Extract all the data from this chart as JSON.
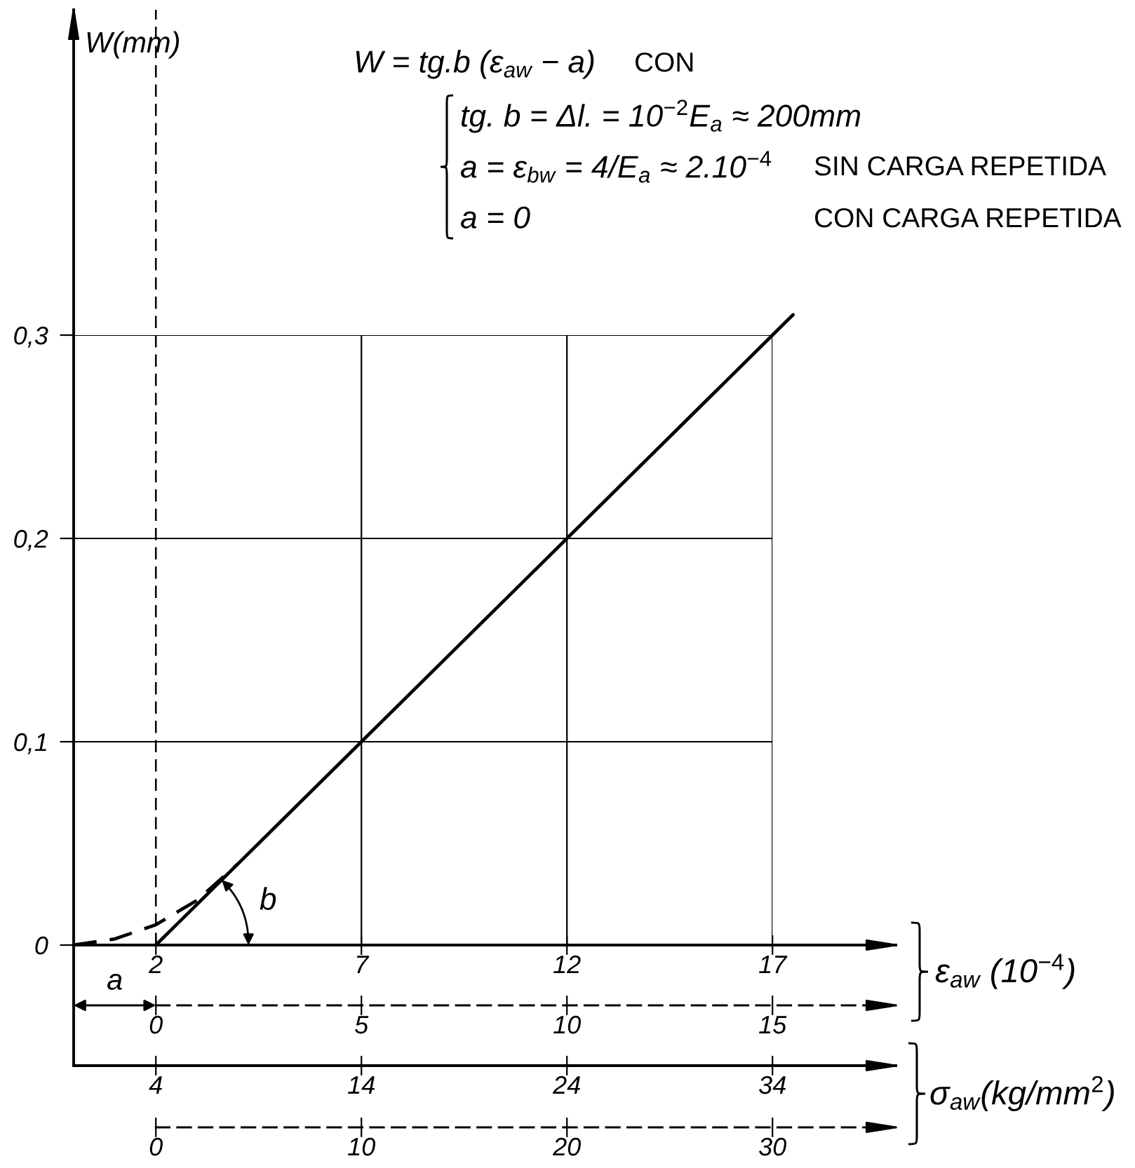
{
  "chart_data": {
    "type": "line",
    "xlabel": "ε$_{aw}$ (10$^{−4}$)",
    "ylabel": "W(mm)",
    "x2label": "σ$_{aw}$(kg/mm$^{2}$)",
    "xlim": [
      0,
      20
    ],
    "xticks": [
      2,
      7,
      12,
      17
    ],
    "x2lim": [
      0,
      40
    ],
    "x2ticks": [
      4,
      14,
      24,
      34
    ],
    "ylim": [
      0,
      0.46
    ],
    "yticks": [
      0,
      {
        "value": 0.1,
        "label": "0,1"
      },
      {
        "value": 0.2,
        "label": "0,2"
      },
      {
        "value": 0.3,
        "label": "0,3"
      }
    ],
    "grid": true,
    "series": [
      {
        "color": "#000000",
        "x": [
          2,
          17.5
        ],
        "values": [
          0,
          0.31
        ]
      },
      {
        "color": "#000000",
        "line_style": "dashed",
        "x": [
          0,
          1,
          2,
          3,
          4
        ],
        "values": [
          0,
          0.003,
          0.01,
          0.022,
          0.04
        ]
      }
    ],
    "ref_lines": [
      {
        "axis": "x",
        "value": 2,
        "color": "#000000",
        "line_style": "dashed"
      }
    ],
    "annotations": [
      "W = tg.b (ε$_{aw}$ − a)",
      "CON",
      "tg. b = Δl. = 10$^{−2}$E$_{a}$ ≈ 200mm",
      "a = ε$_{bw}$ = 4/E$_{a}$ ≈ 2.10$^{−4}$",
      "SIN CARGA REPETIDA",
      "a = 0",
      "CON CARGA REPETIDA",
      "a",
      "b",
      "0",
      "5",
      "10",
      "15",
      "0",
      "10",
      "20",
      "30"
    ]
  }
}
